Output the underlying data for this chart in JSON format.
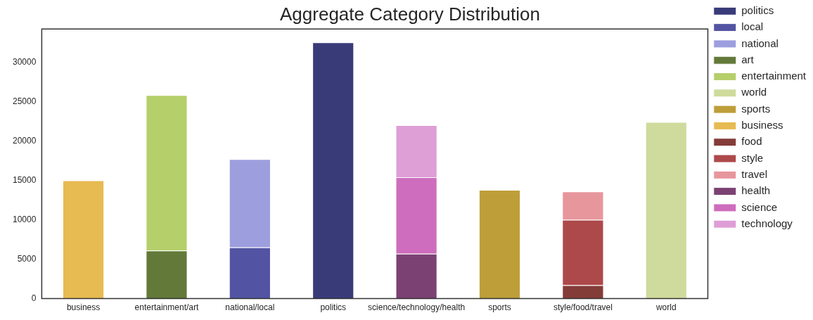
{
  "chart_data": {
    "type": "bar",
    "title": "Aggregate Category Distribution",
    "stacked": true,
    "grid": false,
    "legend": "top right",
    "categories": [
      "business",
      "entertainment/art",
      "national/local",
      "politics",
      "science/technology/health",
      "sports",
      "style/food/travel",
      "world"
    ],
    "ylim": [
      0,
      34200
    ],
    "yticks": [
      0,
      5000,
      10000,
      15000,
      20000,
      25000,
      30000
    ],
    "series": [
      {
        "name": "politics",
        "color": "#393b79",
        "values": [
          null,
          null,
          null,
          32500,
          null,
          null,
          null,
          null
        ]
      },
      {
        "name": "local",
        "color": "#5254a3",
        "values": [
          null,
          null,
          6500,
          null,
          null,
          null,
          null,
          null
        ]
      },
      {
        "name": "national",
        "color": "#9c9ede",
        "values": [
          null,
          null,
          11200,
          null,
          null,
          null,
          null,
          null
        ]
      },
      {
        "name": "art",
        "color": "#637939",
        "values": [
          null,
          6100,
          null,
          null,
          null,
          null,
          null,
          null
        ]
      },
      {
        "name": "entertainment",
        "color": "#b5cf6b",
        "values": [
          null,
          19700,
          null,
          null,
          null,
          null,
          null,
          null
        ]
      },
      {
        "name": "world",
        "color": "#cedb9c",
        "values": [
          null,
          null,
          null,
          null,
          null,
          null,
          null,
          22400
        ]
      },
      {
        "name": "sports",
        "color": "#bd9e39",
        "values": [
          null,
          null,
          null,
          null,
          null,
          13800,
          null,
          null
        ]
      },
      {
        "name": "business",
        "color": "#e7ba52",
        "values": [
          15000,
          null,
          null,
          null,
          null,
          null,
          null,
          null
        ]
      },
      {
        "name": "food",
        "color": "#843c39",
        "values": [
          null,
          null,
          null,
          null,
          null,
          null,
          1700,
          null
        ]
      },
      {
        "name": "style",
        "color": "#ad494a",
        "values": [
          null,
          null,
          null,
          null,
          null,
          null,
          8300,
          null
        ]
      },
      {
        "name": "travel",
        "color": "#e7969c",
        "values": [
          null,
          null,
          null,
          null,
          null,
          null,
          3600,
          null
        ]
      },
      {
        "name": "health",
        "color": "#7b4173",
        "values": [
          null,
          null,
          null,
          null,
          5700,
          null,
          null,
          null
        ]
      },
      {
        "name": "science",
        "color": "#ce6dbd",
        "values": [
          null,
          null,
          null,
          null,
          9700,
          null,
          null,
          null
        ]
      },
      {
        "name": "technology",
        "color": "#de9ed6",
        "values": [
          null,
          null,
          null,
          null,
          6600,
          null,
          null,
          null
        ]
      }
    ]
  }
}
